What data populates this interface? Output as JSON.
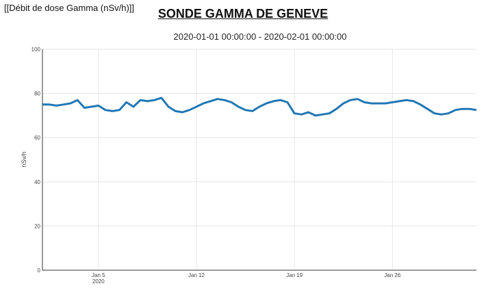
{
  "header": {
    "label": "[[Débit de dose Gamma (nSv/h)]]"
  },
  "chart_data": {
    "type": "line",
    "title": "SONDE GAMMA DE GENEVE",
    "subtitle": "2020-01-01 00:00:00 - 2020-02-01 00:00:00",
    "xlabel": "",
    "ylabel": "nSv/h",
    "ylim": [
      0,
      100
    ],
    "yticks": [
      0,
      20,
      40,
      60,
      80,
      100
    ],
    "xlim": [
      "2020-01-01",
      "2020-02-01"
    ],
    "xticks": [
      {
        "date": "2020-01-05",
        "label": "Jan 5",
        "sublabel": "2020"
      },
      {
        "date": "2020-01-12",
        "label": "Jan 12",
        "sublabel": ""
      },
      {
        "date": "2020-01-19",
        "label": "Jan 19",
        "sublabel": ""
      },
      {
        "date": "2020-01-26",
        "label": "Jan 26",
        "sublabel": ""
      }
    ],
    "grid": true,
    "line_color": "#1f77b4",
    "series": [
      {
        "x": [
          "2020-01-01 00:00",
          "2020-01-01 12:00",
          "2020-01-02 00:00",
          "2020-01-02 12:00",
          "2020-01-03 00:00",
          "2020-01-03 12:00",
          "2020-01-04 00:00",
          "2020-01-04 12:00",
          "2020-01-05 00:00",
          "2020-01-05 12:00",
          "2020-01-06 00:00",
          "2020-01-06 12:00",
          "2020-01-07 00:00",
          "2020-01-07 12:00",
          "2020-01-08 00:00",
          "2020-01-08 12:00",
          "2020-01-09 00:00",
          "2020-01-09 12:00",
          "2020-01-10 00:00",
          "2020-01-10 12:00",
          "2020-01-11 00:00",
          "2020-01-11 12:00",
          "2020-01-12 00:00",
          "2020-01-12 12:00",
          "2020-01-13 00:00",
          "2020-01-13 12:00",
          "2020-01-14 00:00",
          "2020-01-14 12:00",
          "2020-01-15 00:00",
          "2020-01-15 12:00",
          "2020-01-16 00:00",
          "2020-01-16 12:00",
          "2020-01-17 00:00",
          "2020-01-17 12:00",
          "2020-01-18 00:00",
          "2020-01-18 12:00",
          "2020-01-19 00:00",
          "2020-01-19 12:00",
          "2020-01-20 00:00",
          "2020-01-20 12:00",
          "2020-01-21 00:00",
          "2020-01-21 12:00",
          "2020-01-22 00:00",
          "2020-01-22 12:00",
          "2020-01-23 00:00",
          "2020-01-23 12:00",
          "2020-01-24 00:00",
          "2020-01-24 12:00",
          "2020-01-25 00:00",
          "2020-01-25 12:00",
          "2020-01-26 00:00",
          "2020-01-26 12:00",
          "2020-01-27 00:00",
          "2020-01-27 12:00",
          "2020-01-28 00:00",
          "2020-01-28 12:00",
          "2020-01-29 00:00",
          "2020-01-29 12:00",
          "2020-01-30 00:00",
          "2020-01-30 12:00",
          "2020-01-31 00:00",
          "2020-01-31 12:00",
          "2020-02-01 00:00"
        ],
        "y": [
          75,
          75,
          74.5,
          75,
          75.5,
          77,
          73.5,
          74,
          74.5,
          72.5,
          72,
          72.5,
          76,
          74,
          77,
          76.5,
          77,
          78,
          74,
          72,
          71.5,
          72.5,
          74,
          75.5,
          76.5,
          77.5,
          77,
          76,
          74,
          72.5,
          72,
          74,
          75.5,
          76.5,
          77,
          76,
          71,
          70.5,
          71.5,
          70,
          70.5,
          71,
          73,
          75.5,
          77,
          77.5,
          76,
          75.5,
          75.5,
          75.5,
          76,
          76.5,
          77,
          76.5,
          75,
          73,
          71,
          70.5,
          71,
          72.5,
          73,
          73,
          72.5
        ]
      }
    ]
  }
}
